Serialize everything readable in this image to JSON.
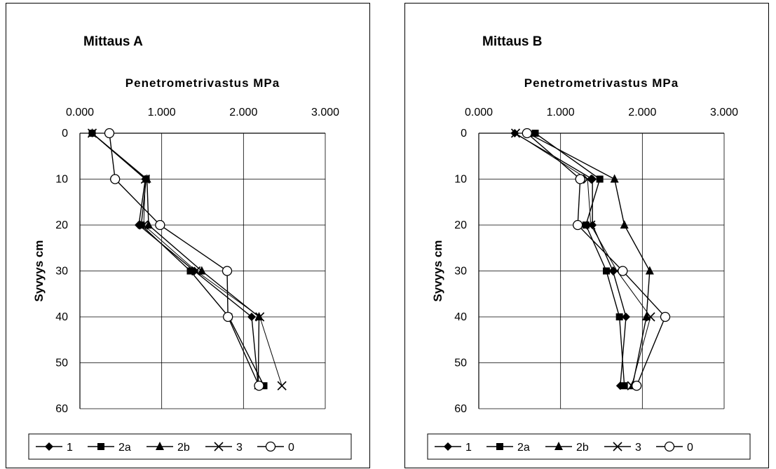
{
  "chart_data": [
    {
      "type": "line",
      "title": "Mittaus A",
      "xlabel": "Penetrometrivastus MPa",
      "ylabel": "Syvyys cm",
      "xlim": [
        0,
        3
      ],
      "ylim": [
        0,
        60
      ],
      "y_inverted": true,
      "x_axis_position": "top",
      "x_ticks": [
        "0.000",
        "1.000",
        "2.000",
        "3.000"
      ],
      "y_ticks": [
        "0",
        "10",
        "20",
        "30",
        "40",
        "50",
        "60"
      ],
      "grid": true,
      "legend_position": "bottom",
      "depths": [
        0,
        10,
        20,
        30,
        40,
        55
      ],
      "series": [
        {
          "name": "1",
          "marker": "diamond",
          "values": [
            0.15,
            0.8,
            0.72,
            1.4,
            2.1,
            2.18
          ]
        },
        {
          "name": "2a",
          "marker": "square",
          "values": [
            0.15,
            0.81,
            0.75,
            1.35,
            1.82,
            2.25
          ]
        },
        {
          "name": "2b",
          "marker": "triangle",
          "values": [
            0.15,
            0.82,
            0.84,
            1.49,
            2.19,
            2.18
          ]
        },
        {
          "name": "3",
          "marker": "x",
          "values": [
            0.15,
            0.8,
            0.78,
            1.42,
            2.2,
            2.47
          ]
        },
        {
          "name": "0",
          "marker": "circle",
          "values": [
            0.36,
            0.43,
            0.98,
            1.8,
            1.81,
            2.19
          ]
        }
      ]
    },
    {
      "type": "line",
      "title": "Mittaus B",
      "xlabel": "Penetrometrivastus MPa",
      "ylabel": "Syvyys cm",
      "xlim": [
        0,
        3
      ],
      "ylim": [
        0,
        60
      ],
      "y_inverted": true,
      "x_axis_position": "top",
      "x_ticks": [
        "0.000",
        "1.000",
        "2.000",
        "3.000"
      ],
      "y_ticks": [
        "0",
        "10",
        "20",
        "30",
        "40",
        "50",
        "60"
      ],
      "grid": true,
      "legend_position": "bottom",
      "depths": [
        0,
        10,
        20,
        30,
        40,
        55
      ],
      "series": [
        {
          "name": "1",
          "marker": "diamond",
          "values": [
            0.44,
            1.39,
            1.39,
            1.64,
            1.8,
            1.73
          ]
        },
        {
          "name": "2a",
          "marker": "square",
          "values": [
            0.69,
            1.48,
            1.31,
            1.56,
            1.72,
            1.78
          ]
        },
        {
          "name": "2b",
          "marker": "triangle",
          "values": [
            0.6,
            1.66,
            1.78,
            2.09,
            2.05,
            1.88
          ]
        },
        {
          "name": "3",
          "marker": "x",
          "values": [
            0.45,
            1.33,
            1.37,
            1.69,
            2.1,
            1.87
          ]
        },
        {
          "name": "0",
          "marker": "circle",
          "values": [
            0.59,
            1.24,
            1.21,
            1.76,
            2.28,
            1.93
          ]
        }
      ]
    }
  ]
}
